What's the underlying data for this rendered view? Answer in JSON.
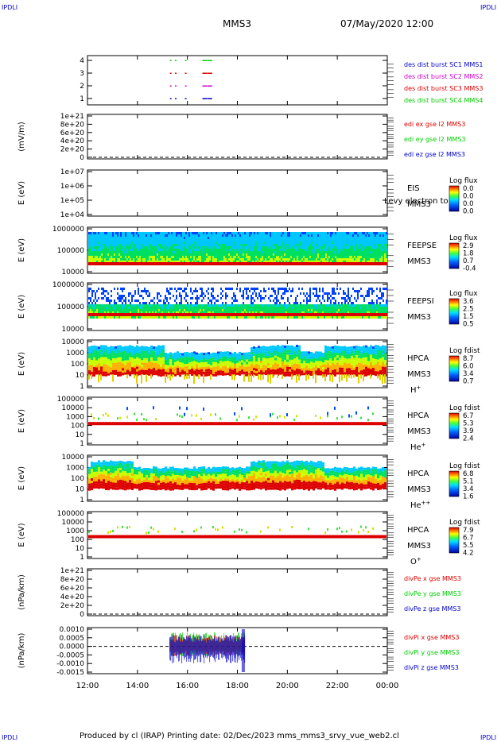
{
  "corner_marks": {
    "tl": "IPDLI",
    "tr": "IPDLI",
    "bl": "IPDLI",
    "br": "IPDLI"
  },
  "header": {
    "spacecraft": "MMS3",
    "datetime": "07/May/2020 12:00"
  },
  "footer": {
    "text": "Produced by cl (IRAP)   Printing date: 02/Dec/2023   mms_mms3_srvy_vue_web2.cl"
  },
  "colors": {
    "red": "#dd0000",
    "green": "#00cc00",
    "blue": "#0000cc",
    "magenta": "#cc00cc",
    "axis": "#000000"
  },
  "time_axis": {
    "ticks": [
      "12:00",
      "14:00",
      "16:00",
      "18:00",
      "20:00",
      "22:00",
      "00:00"
    ]
  },
  "chart_data": [
    {
      "id": "p1",
      "type": "scatter",
      "yticks": [
        "4",
        "3",
        "2",
        "1"
      ],
      "ylabel": "",
      "legend": [
        {
          "text": "des dist burst SC1 MMS1",
          "color": "#0000cc"
        },
        {
          "text": "des dist burst SC2 MMS2",
          "color": "#cc00cc"
        },
        {
          "text": "des dist burst SC3 MMS3",
          "color": "#dd0000"
        },
        {
          "text": "des dist burst SC4 MMS4",
          "color": "#00cc00"
        }
      ],
      "series": [
        {
          "name": "des dist burst SC1 MMS1",
          "y": 1,
          "x_hours": [
            15.3,
            15.5,
            15.9,
            16.6,
            16.8
          ]
        },
        {
          "name": "des dist burst SC2 MMS2",
          "y": 2,
          "x_hours": [
            15.3,
            15.5,
            15.9,
            16.6,
            16.8
          ]
        },
        {
          "name": "des dist burst SC3 MMS3",
          "y": 3,
          "x_hours": [
            15.3,
            15.5,
            15.9,
            16.6,
            16.8
          ]
        },
        {
          "name": "des dist burst SC4 MMS4",
          "y": 4,
          "x_hours": [
            15.3,
            15.5,
            15.9,
            16.6,
            16.8
          ]
        }
      ]
    },
    {
      "id": "p2",
      "type": "line",
      "ylabel": "(mV/m)",
      "yticks": [
        "1e+21",
        "8e+20",
        "6e+20",
        "4e+20",
        "2e+20",
        "0"
      ],
      "legend": [
        {
          "text": "edi ex gse l2 MMS3",
          "color": "#dd0000"
        },
        {
          "text": "edi ey gse l2 MMS3",
          "color": "#00cc00"
        },
        {
          "text": "edi ez gse l2 MMS3",
          "color": "#0000cc"
        }
      ]
    },
    {
      "id": "p3",
      "type": "heatmap",
      "ylabel": "E (eV)",
      "yticks": [
        "1e+07",
        "1e+06",
        "1e+05",
        "1e+04"
      ],
      "instrument": "EIS",
      "spacecraft": "MMS3",
      "overlap_text": "Levy electron to",
      "colorbar": {
        "title": "Log flux",
        "ticks": [
          "0.0",
          "0.0",
          "0.0",
          "0.0"
        ]
      }
    },
    {
      "id": "p4",
      "type": "heatmap",
      "ylabel": "E (eV)",
      "yticks": [
        "1000000",
        "100000",
        "10000"
      ],
      "instrument": "FEEPSE",
      "spacecraft": "MMS3",
      "colorbar": {
        "title": "Log flux",
        "ticks": [
          "2.9",
          "1.8",
          "0.7",
          "-0.4"
        ]
      }
    },
    {
      "id": "p5",
      "type": "heatmap",
      "ylabel": "E (eV)",
      "yticks": [
        "1000000",
        "100000",
        "10000"
      ],
      "instrument": "FEEPSI",
      "spacecraft": "MMS3",
      "colorbar": {
        "title": "Log flux",
        "ticks": [
          "3.6",
          "2.5",
          "1.5",
          "0.5"
        ]
      }
    },
    {
      "id": "p6",
      "type": "heatmap",
      "ylabel": "E (eV)",
      "yticks": [
        "10000",
        "1000",
        "100",
        "10",
        "1"
      ],
      "instrument": "HPCA",
      "spacecraft": "MMS3",
      "species": "H",
      "species_sup": "+",
      "colorbar": {
        "title": "Log fdist",
        "ticks": [
          "8.7",
          "6.0",
          "3.4",
          "0.7"
        ]
      }
    },
    {
      "id": "p7",
      "type": "heatmap",
      "ylabel": "E (eV)",
      "yticks": [
        "100000",
        "10000",
        "1000",
        "100",
        "10",
        "1"
      ],
      "instrument": "HPCA",
      "spacecraft": "MMS3",
      "species": "He",
      "species_sup": "+",
      "colorbar": {
        "title": "Log fdist",
        "ticks": [
          "6.7",
          "5.3",
          "3.9",
          "2.4"
        ]
      }
    },
    {
      "id": "p8",
      "type": "heatmap",
      "ylabel": "E (eV)",
      "yticks": [
        "10000",
        "1000",
        "100",
        "10",
        "1"
      ],
      "instrument": "HPCA",
      "spacecraft": "MMS3",
      "species": "He",
      "species_sup": "++",
      "colorbar": {
        "title": "Log fdist",
        "ticks": [
          "6.8",
          "5.1",
          "3.4",
          "1.6"
        ]
      }
    },
    {
      "id": "p9",
      "type": "heatmap",
      "ylabel": "E (eV)",
      "yticks": [
        "100000",
        "10000",
        "1000",
        "100",
        "10",
        "1"
      ],
      "instrument": "HPCA",
      "spacecraft": "MMS3",
      "species": "O",
      "species_sup": "+",
      "colorbar": {
        "title": "Log fdist",
        "ticks": [
          "7.9",
          "6.7",
          "5.5",
          "4.2"
        ]
      }
    },
    {
      "id": "p10",
      "type": "line",
      "ylabel": "(nPa/km)",
      "yticks": [
        "1e+21",
        "8e+20",
        "6e+20",
        "4e+20",
        "2e+20",
        "0"
      ],
      "legend": [
        {
          "text": "divPe x gse MMS3",
          "color": "#dd0000"
        },
        {
          "text": "divPe y gse MMS3",
          "color": "#00cc00"
        },
        {
          "text": "divPe z gse MMS3",
          "color": "#0000cc"
        }
      ]
    },
    {
      "id": "p11",
      "type": "line",
      "ylabel": "(nPa/km)",
      "yticks": [
        "0.0010",
        "0.0005",
        "0.0000",
        "-0.0005",
        "-0.0010",
        "-0.0015"
      ],
      "legend": [
        {
          "text": "divPi x gse MMS3",
          "color": "#dd0000"
        },
        {
          "text": "divPi y gse MMS3",
          "color": "#00cc00"
        },
        {
          "text": "divPi z gse MMS3",
          "color": "#0000cc"
        }
      ],
      "x_range_hours": [
        15.3,
        18.3
      ]
    }
  ]
}
